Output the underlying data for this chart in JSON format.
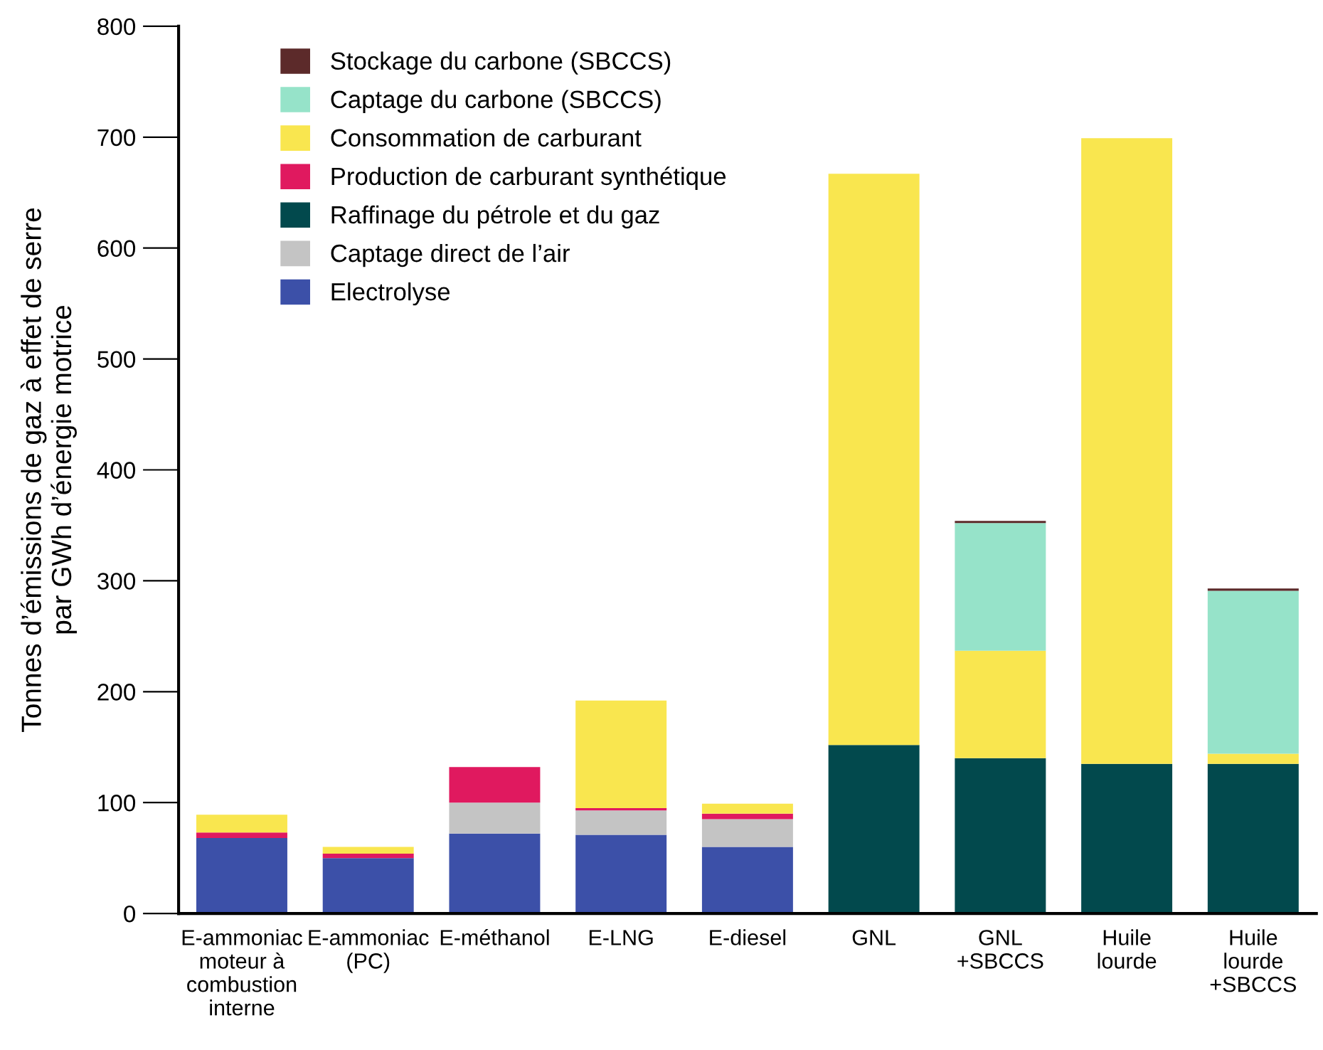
{
  "chart_data": {
    "type": "bar",
    "stacked": true,
    "ylabel": "Tonnes d’émissions de gaz à effet de serre\npar GWh d’énergie motrice",
    "categories": [
      "E-ammoniac\nmoteur à\ncombustion\ninterne",
      "E-ammoniac\n(PC)",
      "E-méthanol",
      "E-LNG",
      "E-diesel",
      "GNL",
      "GNL\n+SBCCS",
      "Huile\nlourde",
      "Huile\nlourde\n+SBCCS"
    ],
    "series": [
      {
        "name": "Electrolyse",
        "color": "#3c50a8",
        "values": [
          68,
          50,
          72,
          71,
          60,
          0,
          0,
          0,
          0
        ]
      },
      {
        "name": "Captage direct de l’air",
        "color": "#c4c4c4",
        "values": [
          0,
          0,
          28,
          22,
          25,
          0,
          0,
          0,
          0
        ]
      },
      {
        "name": "Raffinage du pétrole et du gaz",
        "color": "#02494d",
        "values": [
          0,
          0,
          0,
          0,
          0,
          152,
          140,
          135,
          135
        ]
      },
      {
        "name": "Production de carburant synthétique",
        "color": "#e0195f",
        "values": [
          5,
          4,
          32,
          2,
          5,
          0,
          0,
          0,
          0
        ]
      },
      {
        "name": "Consommation de carburant",
        "color": "#f9e64f",
        "values": [
          16,
          6,
          0,
          97,
          9,
          515,
          97,
          564,
          9
        ]
      },
      {
        "name": "Captage du carbone (SBCCS)",
        "color": "#96e3c9",
        "values": [
          0,
          0,
          0,
          0,
          0,
          0,
          115,
          0,
          147
        ]
      },
      {
        "name": "Stockage du carbone (SBCCS)",
        "color": "#5c2a2a",
        "values": [
          0,
          0,
          0,
          0,
          0,
          0,
          2,
          0,
          2
        ]
      }
    ],
    "ylim": [
      0,
      800
    ],
    "yticks": [
      0,
      100,
      200,
      300,
      400,
      500,
      600,
      700,
      800
    ],
    "grid": false,
    "legend": "top left"
  }
}
